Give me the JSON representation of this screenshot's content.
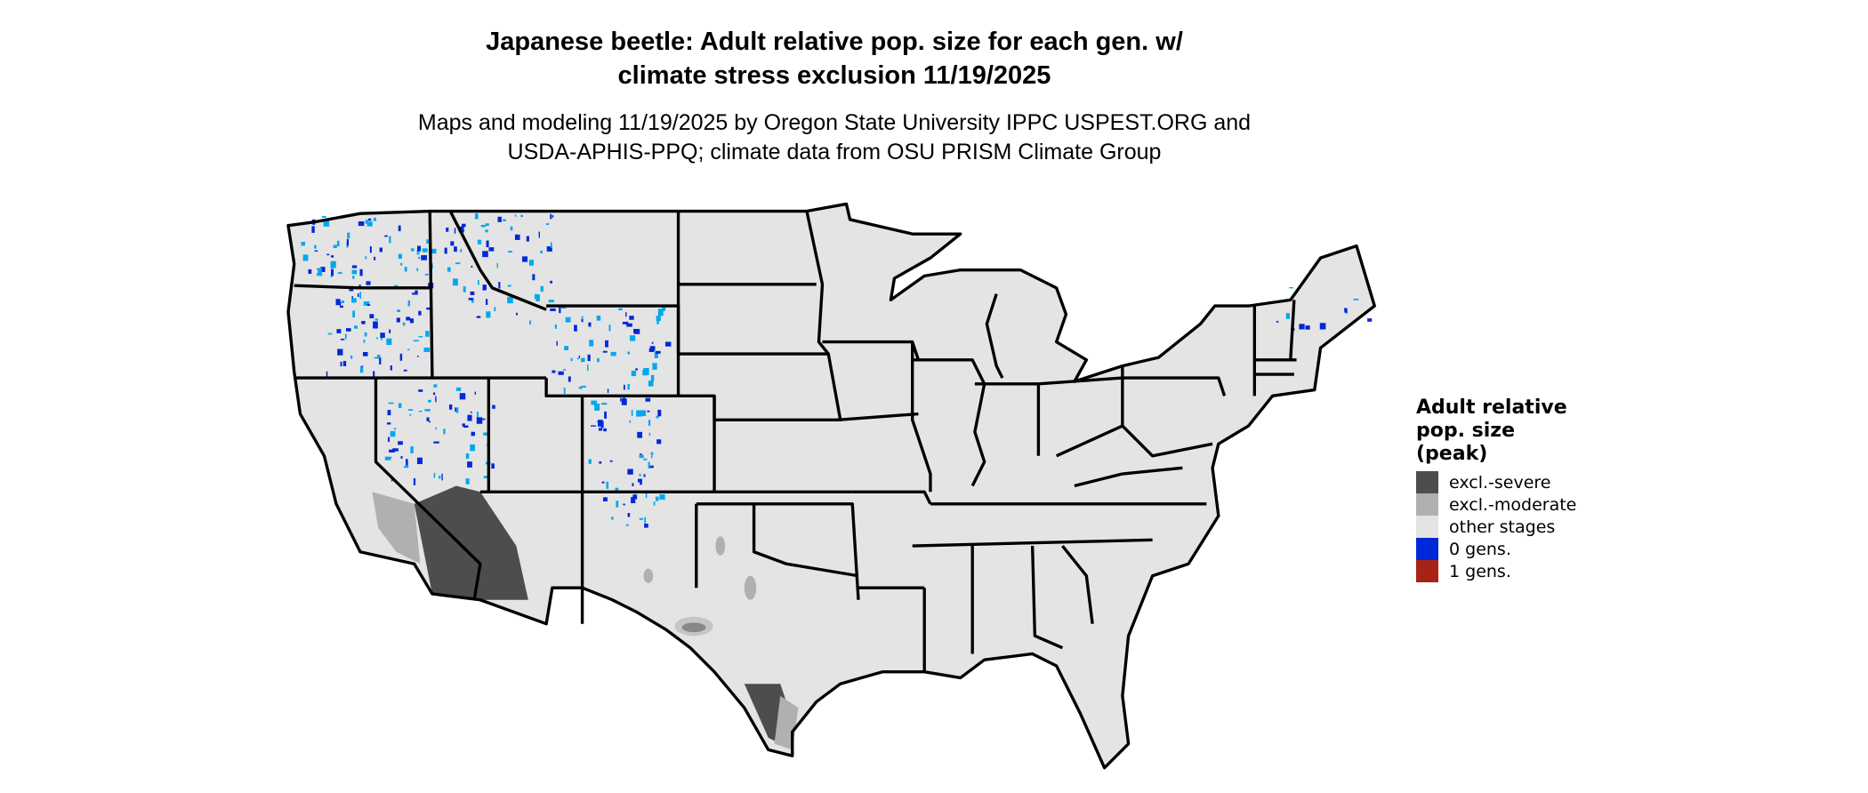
{
  "title": {
    "line1": "Japanese beetle: Adult relative pop. size for each gen. w/",
    "line2": "climate stress exclusion 11/19/2025"
  },
  "subtitle": {
    "line1": "Maps and modeling 11/19/2025 by Oregon State University IPPC USPEST.ORG and",
    "line2": "USDA-APHIS-PPQ; climate data from OSU PRISM Climate Group"
  },
  "legend": {
    "title_lines": [
      "Adult relative",
      "pop. size",
      "(peak)"
    ],
    "items": [
      {
        "label": "excl.-severe",
        "color": "#4d4d4d"
      },
      {
        "label": "excl.-moderate",
        "color": "#b0b0b0"
      },
      {
        "label": "other stages",
        "color": "#e4e4e4"
      },
      {
        "label": "0 gens.",
        "color": "#0028d8"
      },
      {
        "label": "1 gens.",
        "color": "#a82316"
      }
    ]
  },
  "map": {
    "land_color": "#e4e4e4",
    "border_color": "#000000",
    "light_blue": "#00a8f0"
  }
}
